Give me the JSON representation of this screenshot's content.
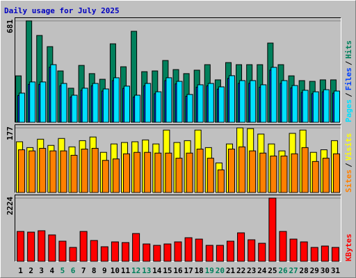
{
  "chart_data": [
    {
      "type": "bar",
      "title": "Daily usage for July 2025",
      "title_color": "#0000c0",
      "ylim": [
        0,
        681
      ],
      "yticks": [
        681
      ],
      "legend_separator": "/",
      "series": [
        {
          "name": "Pages",
          "color": "#00e0ff",
          "values": [
            196,
            271,
            271,
            387,
            261,
            182,
            229,
            261,
            224,
            299,
            243,
            182,
            261,
            205,
            299,
            275,
            187,
            252,
            261,
            238,
            313,
            280,
            280,
            252,
            369,
            280,
            247,
            215,
            205,
            219,
            210
          ]
        },
        {
          "name": "Files",
          "color": "#0040ff",
          "values": [
            180,
            255,
            255,
            370,
            245,
            170,
            215,
            245,
            210,
            280,
            228,
            170,
            245,
            192,
            280,
            258,
            175,
            236,
            245,
            223,
            295,
            262,
            262,
            236,
            350,
            262,
            231,
            200,
            192,
            205,
            196
          ]
        },
        {
          "name": "Hits",
          "color": "#00805c",
          "values": [
            312,
            681,
            583,
            508,
            345,
            229,
            382,
            327,
            289,
            527,
            373,
            611,
            340,
            345,
            415,
            354,
            327,
            350,
            387,
            285,
            401,
            387,
            387,
            387,
            532,
            387,
            312,
            280,
            275,
            285,
            285
          ]
        }
      ]
    },
    {
      "type": "bar",
      "ylim": [
        0,
        177
      ],
      "yticks": [
        177
      ],
      "legend_separator": "/",
      "series": [
        {
          "name": "Sites",
          "color": "#ff8000",
          "values": [
            117,
            114,
            121,
            114,
            114,
            102,
            119,
            121,
            88,
            92,
            106,
            110,
            110,
            108,
            108,
            94,
            108,
            119,
            94,
            62,
            119,
            125,
            114,
            108,
            100,
            100,
            106,
            123,
            85,
            94,
            106
          ]
        },
        {
          "name": "Visits",
          "color": "#ffff00",
          "values": [
            139,
            123,
            146,
            129,
            148,
            125,
            142,
            152,
            110,
            133,
            137,
            139,
            144,
            133,
            171,
            137,
            142,
            171,
            123,
            81,
            133,
            177,
            175,
            160,
            133,
            114,
            162,
            171,
            110,
            117,
            142
          ]
        }
      ]
    },
    {
      "type": "bar",
      "ylim": [
        0,
        2224
      ],
      "yticks": [
        2224
      ],
      "series": [
        {
          "name": "KBytes",
          "color": "#ff0000",
          "values": [
            1051,
            1027,
            1076,
            929,
            709,
            489,
            1051,
            733,
            513,
            684,
            660,
            978,
            611,
            562,
            611,
            684,
            831,
            782,
            562,
            562,
            709,
            1002,
            758,
            635,
            2224,
            1051,
            782,
            684,
            489,
            538,
            489
          ]
        }
      ],
      "categories": [
        "1",
        "2",
        "3",
        "4",
        "5",
        "6",
        "7",
        "8",
        "9",
        "10",
        "11",
        "12",
        "13",
        "14",
        "15",
        "16",
        "17",
        "18",
        "19",
        "20",
        "21",
        "22",
        "23",
        "24",
        "25",
        "26",
        "27",
        "28",
        "29",
        "30",
        "31"
      ],
      "category_colors": [
        "#000000",
        "#000000",
        "#000000",
        "#000000",
        "#00805c",
        "#00805c",
        "#000000",
        "#000000",
        "#000000",
        "#000000",
        "#000000",
        "#00805c",
        "#00805c",
        "#000000",
        "#000000",
        "#000000",
        "#000000",
        "#000000",
        "#00805c",
        "#00805c",
        "#000000",
        "#000000",
        "#000000",
        "#000000",
        "#000000",
        "#00805c",
        "#00805c",
        "#000000",
        "#000000",
        "#000000",
        "#000000"
      ]
    }
  ]
}
